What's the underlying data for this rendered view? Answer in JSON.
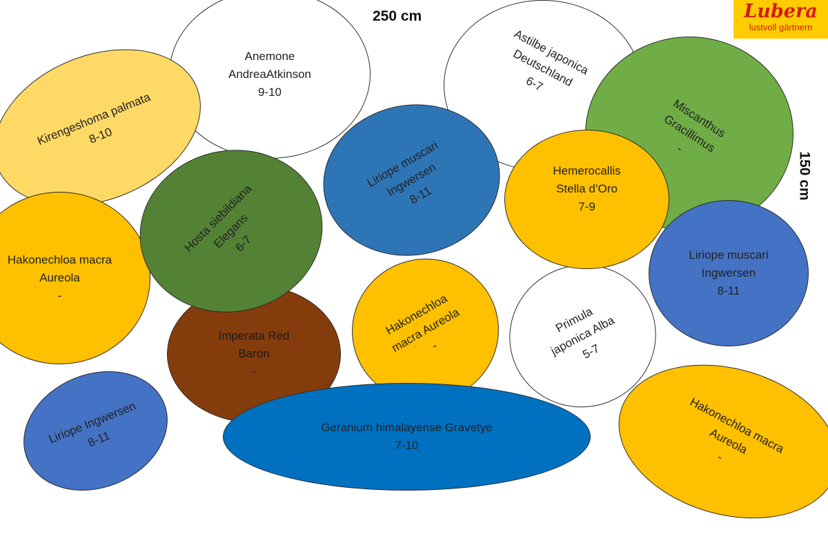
{
  "dimensions": {
    "width_label": "250 cm",
    "height_label": "150 cm"
  },
  "logo": {
    "brand": "Lubera",
    "tagline": "lustvoll gärtnern"
  },
  "colors": {
    "white": "#ffffff",
    "light_yellow": "#ffd966",
    "golden": "#ffc000",
    "green": "#70ad47",
    "dark_green": "#548235",
    "blue": "#2e75b6",
    "cornflower": "#4472c4",
    "mid_blue": "#0070c0",
    "brown": "#843c0c",
    "logo_yellow": "#ffcc00",
    "logo_red": "#d41a14"
  },
  "plants": [
    {
      "lines": [
        "Anemone",
        "AndreaAtkinson",
        "9-10"
      ],
      "color": "white"
    },
    {
      "lines": [
        "Astilbe japonica",
        "Deutschland",
        "6-7"
      ],
      "color": "white"
    },
    {
      "lines": [
        "Miscanthus",
        "Gracillimus",
        "-"
      ],
      "color": "green"
    },
    {
      "lines": [
        "Kirengeshoma palmata",
        "8-10"
      ],
      "color": "light_yellow"
    },
    {
      "lines": [
        "Hakonechloa macra",
        "Aureola",
        "-"
      ],
      "color": "golden"
    },
    {
      "lines": [
        "Liriope muscari",
        "Ingwersen",
        "8-11"
      ],
      "color": "blue"
    },
    {
      "lines": [
        "Hosta siebildiana",
        "Elegans",
        "6-7"
      ],
      "color": "dark_green"
    },
    {
      "lines": [
        "Hemerocallis",
        "Stella d’Oro",
        "7-9"
      ],
      "color": "golden"
    },
    {
      "lines": [
        "Liriope muscari",
        "Ingwersen",
        "8-11"
      ],
      "color": "cornflower"
    },
    {
      "lines": [
        "Imperata Red",
        "Baron",
        "-"
      ],
      "color": "brown"
    },
    {
      "lines": [
        "Hakonechloa",
        "macra Aureola",
        "-"
      ],
      "color": "golden"
    },
    {
      "lines": [
        "Primula",
        "japonica Alba",
        "5-7"
      ],
      "color": "white"
    },
    {
      "lines": [
        "Liriope Ingwersen",
        "8-11"
      ],
      "color": "cornflower"
    },
    {
      "lines": [
        "Hakonechloa macra",
        "Aureola",
        "-"
      ],
      "color": "golden"
    },
    {
      "lines": [
        "Geranium himalayense Gravetye",
        "7-10"
      ],
      "color": "mid_blue"
    }
  ]
}
